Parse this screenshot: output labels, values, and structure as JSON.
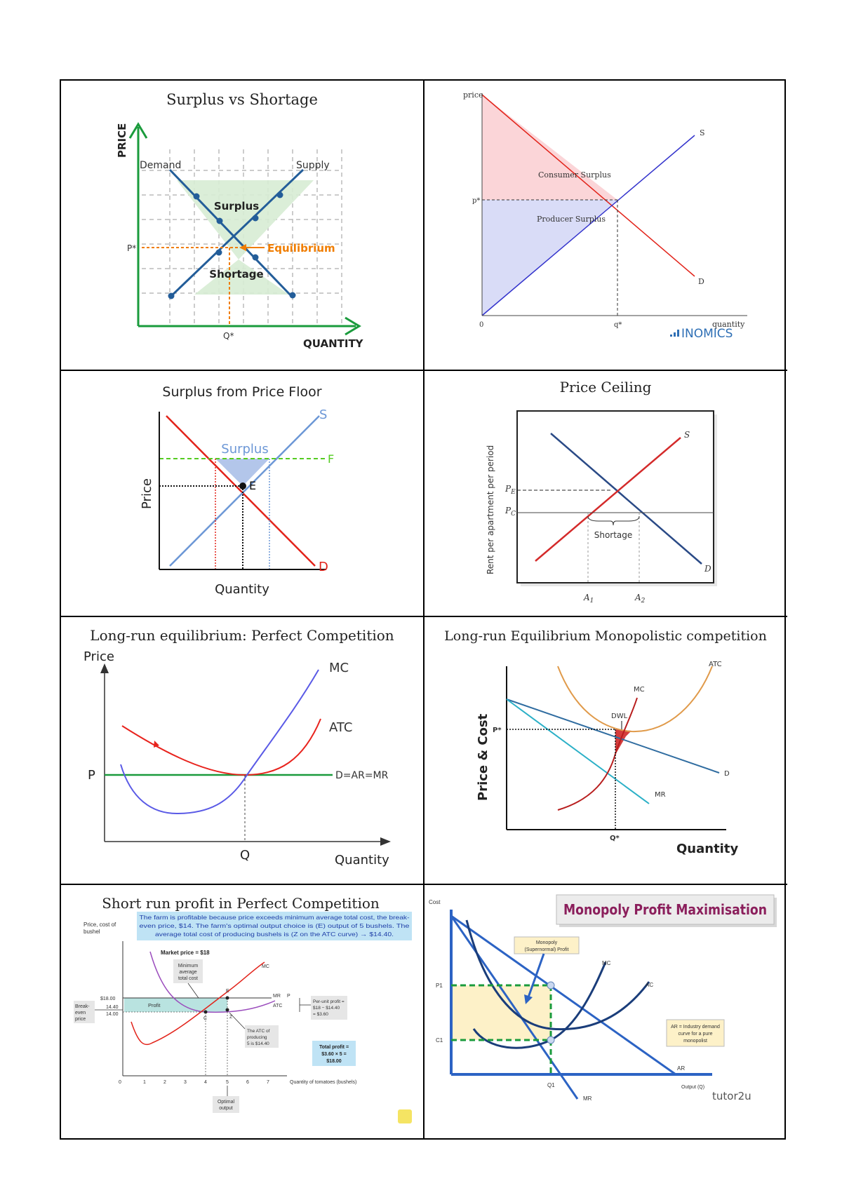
{
  "panels": {
    "surplus_shortage": {
      "title": "Surplus vs Shortage",
      "y_axis": "PRICE",
      "x_axis": "QUANTITY",
      "demand": "Demand",
      "supply": "Supply",
      "surplus": "Surplus",
      "shortage": "Shortage",
      "equilibrium": "Equilibrium",
      "p_star": "P*",
      "q_star": "Q*"
    },
    "consumer_producer": {
      "y_axis": "price",
      "x_axis": "quantity",
      "consumer_surplus": "Consumer Surplus",
      "producer_surplus": "Producer Surplus",
      "s": "S",
      "d": "D",
      "p_star": "p*",
      "q_star": "q*",
      "origin": "0",
      "brand": "INOMICS"
    },
    "price_floor": {
      "title": "Surplus from Price Floor",
      "y_axis": "Price",
      "x_axis": "Quantity",
      "surplus": "Surplus",
      "s": "S",
      "d": "D",
      "f": "F",
      "e": "E"
    },
    "price_ceiling": {
      "title": "Price Ceiling",
      "y_axis": "Rent per apartment per period",
      "pe": "P",
      "pe_sub": "E",
      "pc": "P",
      "pc_sub": "C",
      "s": "S",
      "d": "D",
      "shortage": "Shortage",
      "a1": "A",
      "a1_sub": "1",
      "a2": "A",
      "a2_sub": "2"
    },
    "lr_perfect": {
      "title": "Long-run equilibrium: Perfect Competition",
      "y_axis": "Price",
      "x_axis": "Quantity",
      "mc": "MC",
      "atc": "ATC",
      "demand": "D=AR=MR",
      "p": "P",
      "q": "Q"
    },
    "lr_monopolistic": {
      "title": "Long-run Equilibrium Monopolistic competition",
      "y_axis": "Price & Cost",
      "x_axis": "Quantity",
      "atc": "ATC",
      "mc": "MC",
      "dwl": "DWL",
      "d": "D",
      "mr": "MR",
      "p_star": "P*",
      "q_star": "Q*"
    },
    "sr_profit": {
      "title": "Short run profit in Perfect Competition",
      "banner_1": "The farm is profitable because price exceeds minimum average total cost, the break-",
      "banner_2": "even price, $14. The farm's optimal output choice is (E) output of 5 bushels. The",
      "banner_3": "average total cost of producing bushels is (Z on the ATC curve) → $14.40.",
      "y_axis_1": "Price, cost of",
      "y_axis_2": "bushel",
      "market_price": "Market price = $18",
      "min_atc_1": "Minimum",
      "min_atc_2": "average",
      "min_atc_3": "total cost",
      "mc": "MC",
      "atc": "ATC",
      "mr": "MR",
      "p": "P",
      "e": "E",
      "c": "C",
      "z": "Z",
      "profit": "Profit",
      "price_18": "$18.00",
      "price_14_40": "14.40",
      "price_14": "14.00",
      "breakeven_1": "Break-",
      "breakeven_2": "even",
      "breakeven_3": "price",
      "per_unit_1": "Per-unit profit =",
      "per_unit_2": "$18 − $14.40",
      "per_unit_3": "= $3.60",
      "atc_of_1": "The ATC of",
      "atc_of_2": "producing",
      "atc_of_3": "5 is $14.40",
      "total_1": "Total profit =",
      "total_2": "$3.60 × 5 =",
      "total_3": "$18.00",
      "x_axis": "Quantity of tomatoes (bushels)",
      "optimal_1": "Optimal",
      "optimal_2": "output",
      "x_ticks": [
        "0",
        "1",
        "2",
        "3",
        "4",
        "5",
        "6",
        "7"
      ]
    },
    "monopoly": {
      "title": "Monopoly Profit Maximisation",
      "y_axis": "Cost",
      "profit_label_1": "Monopoly",
      "profit_label_2": "(Supernormal) Profit",
      "mc": "MC",
      "ac": "AC",
      "ar": "AR",
      "mr": "MR",
      "p1": "P1",
      "c1": "C1",
      "q1": "Q1",
      "ar_note_1": "AR = Industry demand",
      "ar_note_2": "curve for a pure",
      "ar_note_3": "monopolist",
      "x_axis": "Output (Q)",
      "brand": "tutor2u"
    }
  },
  "colors": {
    "blue": "#2a5c99",
    "green": "#1a9b3c",
    "orange": "#f07d00",
    "red": "#e2231a",
    "floor_green": "#55cc22",
    "profit_fill": "#fdf1c8",
    "teal_fill": "#b9e3e0",
    "monopoly_title": "#8b1f5c"
  }
}
